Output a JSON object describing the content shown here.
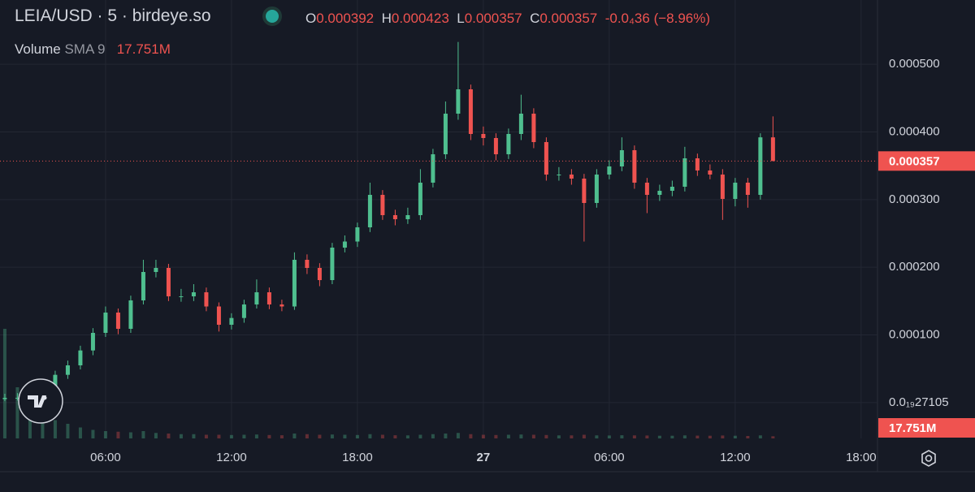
{
  "chart_data": {
    "type": "candlestick",
    "title": "LEIA/USD · 5 · birdeye.so",
    "ohlc_labels": [
      "O",
      "H",
      "L",
      "C"
    ],
    "change": "-0.0₄36 (−8.96%)",
    "volume_title": "Volume",
    "volume_sma": "SMA 9",
    "volume_label": "17.751M",
    "up_color": "#4fbf8f",
    "down_color": "#ef5350",
    "x": [
      1.2,
      1.8,
      2.4,
      3.0,
      3.6,
      4.2,
      4.8,
      5.4,
      6.0,
      6.6,
      7.2,
      7.8,
      8.4,
      9.0,
      9.6,
      10.2,
      10.8,
      11.4,
      12.0,
      12.6,
      13.2,
      13.8,
      14.4,
      15.0,
      15.6,
      16.2,
      16.8,
      17.4,
      18.0,
      18.6,
      19.2,
      19.8,
      20.4,
      21.0,
      21.6,
      22.2,
      22.8,
      23.4,
      24.0,
      24.6,
      25.2,
      25.8,
      26.4,
      27.0,
      27.6,
      28.2,
      28.8,
      29.4,
      30.0,
      30.6,
      31.2,
      31.8,
      32.4,
      33.0,
      33.6,
      34.2,
      34.8,
      35.4,
      36.0,
      36.6,
      37.2,
      37.8
    ],
    "open": [
      5e-06,
      7e-06,
      7e-06,
      1.9e-05,
      2.5e-05,
      4.1e-05,
      5.5e-05,
      7.7e-05,
      0.000103,
      0.000133,
      0.000109,
      0.000151,
      0.000193,
      0.000199,
      0.000157,
      0.000157,
      0.000163,
      0.000142,
      0.000115,
      0.000125,
      0.000145,
      0.000163,
      0.000145,
      0.000142,
      0.000211,
      0.000199,
      0.000181,
      0.000229,
      0.000238,
      0.000259,
      0.000307,
      0.000277,
      0.000271,
      0.000277,
      0.000325,
      0.000367,
      0.000427,
      0.000463,
      0.000397,
      0.000391,
      0.000367,
      0.000397,
      0.000427,
      0.000385,
      0.000337,
      0.000337,
      0.000331,
      0.000295,
      0.000337,
      0.000349,
      0.000373,
      0.000325,
      0.000307,
      0.000313,
      0.000319,
      0.000361,
      0.000343,
      0.000337,
      0.000301,
      0.000325,
      0.000307,
      0.000392
    ],
    "high": [
      1.3e-05,
      1.4e-05,
      2.4e-05,
      3.2e-05,
      4.7e-05,
      6.2e-05,
      8.4e-05,
      0.00011,
      0.000142,
      0.000139,
      0.000158,
      0.000211,
      0.000211,
      0.000205,
      0.000168,
      0.000175,
      0.00017,
      0.000148,
      0.000132,
      0.000152,
      0.000182,
      0.00017,
      0.000152,
      0.000222,
      0.000219,
      0.000206,
      0.000236,
      0.000247,
      0.000266,
      0.000325,
      0.000314,
      0.000285,
      0.000288,
      0.000345,
      0.000375,
      0.000445,
      0.000533,
      0.00047,
      0.000408,
      0.000398,
      0.000405,
      0.000455,
      0.000435,
      0.000392,
      0.000348,
      0.000345,
      0.000338,
      0.000345,
      0.000358,
      0.000392,
      0.00038,
      0.000332,
      0.000322,
      0.000328,
      0.000378,
      0.000368,
      0.000352,
      0.000345,
      0.000332,
      0.000332,
      0.000398,
      0.000423
    ],
    "low": [
      2e-06,
      3e-06,
      5e-06,
      1.4e-05,
      2e-05,
      3.5e-05,
      4.9e-05,
      7e-05,
      9.7e-05,
      0.000101,
      0.000103,
      0.000145,
      0.000185,
      0.00015,
      0.000149,
      0.00015,
      0.000135,
      0.000105,
      0.000108,
      0.000118,
      0.000139,
      0.000138,
      0.000135,
      0.000137,
      0.00019,
      0.000172,
      0.000175,
      0.000222,
      0.00023,
      0.000252,
      0.00027,
      0.000262,
      0.000264,
      0.00027,
      0.000318,
      0.00036,
      0.000418,
      0.000388,
      0.00038,
      0.000358,
      0.00036,
      0.000388,
      0.000376,
      0.000328,
      0.000328,
      0.000322,
      0.000238,
      0.000288,
      0.00033,
      0.000342,
      0.000316,
      0.00028,
      0.000298,
      0.000305,
      0.000312,
      0.000335,
      0.00033,
      0.00027,
      0.00029,
      0.000288,
      0.0003,
      0.000357
    ],
    "close": [
      7e-06,
      7e-06,
      1.9e-05,
      2.5e-05,
      4.1e-05,
      5.5e-05,
      7.7e-05,
      0.000103,
      0.000133,
      0.000109,
      0.000151,
      0.000193,
      0.000199,
      0.000157,
      0.000157,
      0.000163,
      0.000142,
      0.000115,
      0.000125,
      0.000145,
      0.000163,
      0.000145,
      0.000142,
      0.000211,
      0.000199,
      0.000181,
      0.000229,
      0.000238,
      0.000259,
      0.000307,
      0.000277,
      0.000271,
      0.000277,
      0.000325,
      0.000367,
      0.000427,
      0.000463,
      0.000397,
      0.000391,
      0.000367,
      0.000397,
      0.000427,
      0.000385,
      0.000337,
      0.000337,
      0.000331,
      0.000295,
      0.000337,
      0.000349,
      0.000373,
      0.000325,
      0.000307,
      0.000313,
      0.000319,
      0.000361,
      0.000343,
      0.000337,
      0.000301,
      0.000325,
      0.000307,
      0.000392,
      0.000357
    ],
    "volume": [
      900,
      420,
      300,
      210,
      150,
      120,
      90,
      70,
      60,
      55,
      50,
      60,
      45,
      40,
      35,
      35,
      30,
      30,
      28,
      30,
      32,
      28,
      26,
      40,
      35,
      30,
      32,
      30,
      28,
      35,
      30,
      26,
      25,
      30,
      35,
      40,
      45,
      35,
      30,
      28,
      30,
      32,
      30,
      28,
      25,
      25,
      30,
      25,
      24,
      26,
      25,
      24,
      22,
      22,
      25,
      23,
      22,
      24,
      22,
      20,
      25,
      17.751
    ],
    "vlim": [
      0,
      900
    ],
    "xlim": [
      0.97,
      42.78
    ],
    "ylim": [
      -5.3e-05,
      0.000595
    ],
    "xticks": [
      {
        "value": 6,
        "label": "06:00"
      },
      {
        "value": 12,
        "label": "12:00"
      },
      {
        "value": 18,
        "label": "18:00"
      },
      {
        "value": 24,
        "label": "27"
      },
      {
        "value": 30,
        "label": "06:00"
      },
      {
        "value": 36,
        "label": "12:00"
      },
      {
        "value": 42,
        "label": "18:00"
      }
    ],
    "yticks": [
      {
        "value": 2.7105e-20,
        "label": "0.0₁₉27105"
      },
      {
        "value": 0.0001,
        "label": "0.000100"
      },
      {
        "value": 0.0002,
        "label": "0.000200"
      },
      {
        "value": 0.0003,
        "label": "0.000300"
      },
      {
        "value": 0.0004,
        "label": "0.000400"
      },
      {
        "value": 0.0005,
        "label": "0.000500"
      }
    ],
    "grid": true
  }
}
